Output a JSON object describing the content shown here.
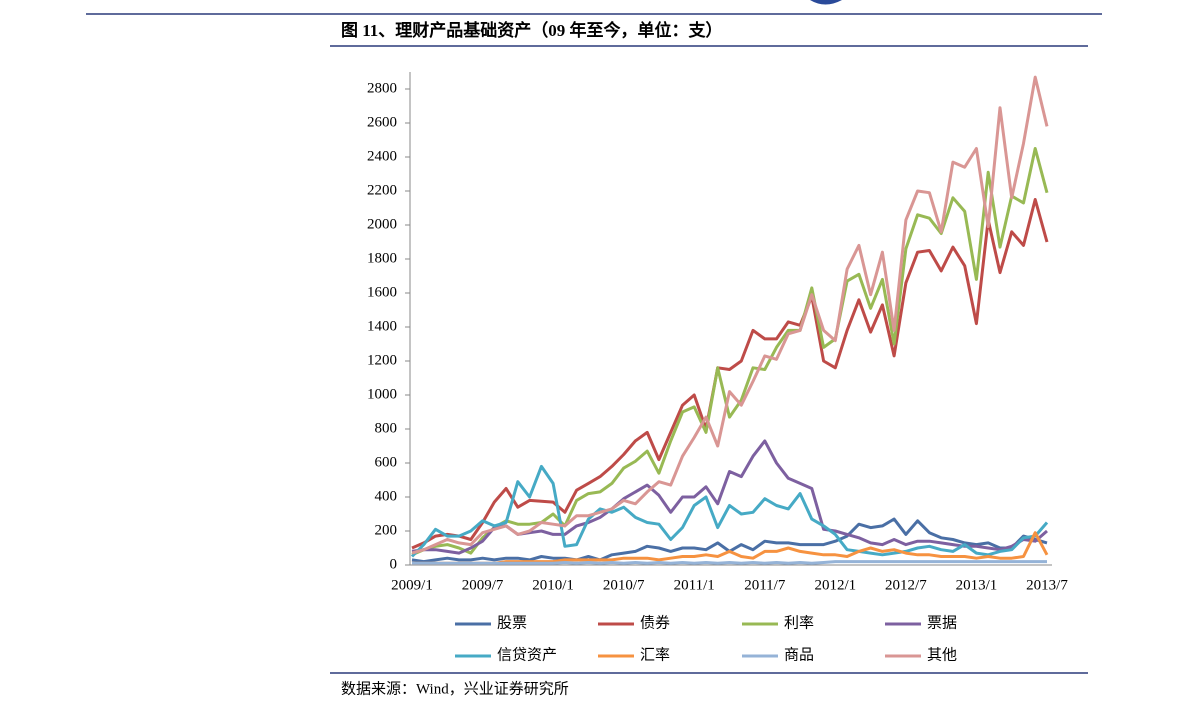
{
  "chart_data": {
    "type": "line",
    "title": "图 11、理财产品基础资产（09 年至今，单位：支）",
    "source": "数据来源：Wind，兴业证券研究所",
    "categories": [
      "2009/1",
      null,
      null,
      null,
      null,
      null,
      "2009/7",
      null,
      null,
      null,
      null,
      null,
      "2010/1",
      null,
      null,
      null,
      null,
      null,
      "2010/7",
      null,
      null,
      null,
      null,
      null,
      "2011/1",
      null,
      null,
      null,
      null,
      null,
      "2011/7",
      null,
      null,
      null,
      null,
      null,
      "2012/1",
      null,
      null,
      null,
      null,
      null,
      "2012/7",
      null,
      null,
      null,
      null,
      null,
      "2013/1",
      null,
      null,
      null,
      null,
      null,
      "2013/7"
    ],
    "ylim": [
      0,
      2900
    ],
    "yticks": [
      0,
      200,
      400,
      600,
      800,
      1000,
      1200,
      1400,
      1600,
      1800,
      2000,
      2200,
      2400,
      2600,
      2800
    ],
    "legend": "bottom",
    "series": [
      {
        "name": "股票",
        "color": "#4a6fa5",
        "values": [
          30,
          20,
          30,
          40,
          30,
          30,
          40,
          30,
          40,
          40,
          30,
          50,
          40,
          40,
          30,
          50,
          30,
          60,
          70,
          80,
          110,
          100,
          80,
          100,
          100,
          90,
          130,
          80,
          120,
          90,
          140,
          130,
          130,
          120,
          120,
          120,
          140,
          170,
          240,
          220,
          230,
          270,
          180,
          260,
          190,
          160,
          150,
          130,
          120,
          130,
          100,
          100,
          170,
          150,
          130
        ]
      },
      {
        "name": "债券",
        "color": "#be4b48",
        "values": [
          100,
          130,
          170,
          180,
          170,
          150,
          250,
          370,
          450,
          340,
          380,
          375,
          370,
          310,
          440,
          480,
          520,
          580,
          650,
          730,
          780,
          620,
          780,
          940,
          1000,
          800,
          1160,
          1150,
          1200,
          1380,
          1330,
          1330,
          1430,
          1410,
          1580,
          1200,
          1160,
          1380,
          1560,
          1370,
          1530,
          1230,
          1660,
          1840,
          1850,
          1730,
          1870,
          1760,
          1420,
          2030,
          1720,
          1960,
          1880,
          2150,
          1900
        ]
      },
      {
        "name": "利率",
        "color": "#98b954",
        "values": [
          60,
          90,
          110,
          120,
          100,
          70,
          160,
          220,
          260,
          240,
          240,
          250,
          300,
          230,
          380,
          420,
          430,
          480,
          570,
          610,
          670,
          540,
          730,
          900,
          930,
          780,
          1160,
          870,
          970,
          1160,
          1150,
          1280,
          1380,
          1380,
          1630,
          1280,
          1330,
          1670,
          1710,
          1510,
          1680,
          1300,
          1860,
          2060,
          2040,
          1950,
          2160,
          2080,
          1680,
          2310,
          1870,
          2170,
          2130,
          2450,
          2190
        ]
      },
      {
        "name": "票据",
        "color": "#7d60a0",
        "values": [
          80,
          90,
          90,
          80,
          70,
          100,
          140,
          220,
          230,
          180,
          190,
          200,
          180,
          180,
          230,
          250,
          280,
          330,
          390,
          430,
          470,
          410,
          310,
          400,
          400,
          460,
          360,
          550,
          520,
          640,
          730,
          600,
          510,
          480,
          450,
          210,
          200,
          180,
          160,
          130,
          120,
          150,
          120,
          140,
          140,
          130,
          120,
          110,
          110,
          100,
          90,
          110,
          150,
          140,
          200
        ]
      },
      {
        "name": "信贷资产",
        "color": "#46aac5",
        "values": [
          50,
          120,
          210,
          170,
          170,
          200,
          260,
          230,
          250,
          490,
          400,
          580,
          480,
          110,
          120,
          270,
          330,
          310,
          340,
          280,
          250,
          240,
          150,
          220,
          350,
          400,
          220,
          350,
          300,
          310,
          390,
          350,
          330,
          420,
          270,
          230,
          180,
          90,
          80,
          70,
          60,
          70,
          80,
          100,
          110,
          90,
          80,
          120,
          70,
          60,
          80,
          90,
          160,
          170,
          250
        ]
      },
      {
        "name": "汇率",
        "color": "#f69240",
        "values": [
          10,
          10,
          10,
          10,
          10,
          10,
          10,
          10,
          20,
          20,
          20,
          20,
          20,
          30,
          30,
          30,
          30,
          30,
          40,
          40,
          40,
          30,
          40,
          50,
          50,
          60,
          50,
          80,
          50,
          40,
          80,
          80,
          100,
          80,
          70,
          60,
          60,
          50,
          80,
          100,
          80,
          90,
          70,
          60,
          60,
          50,
          50,
          50,
          40,
          50,
          40,
          40,
          50,
          190,
          60
        ]
      },
      {
        "name": "商品",
        "color": "#95b3d7",
        "values": [
          10,
          10,
          10,
          10,
          10,
          10,
          10,
          10,
          10,
          10,
          10,
          10,
          10,
          15,
          10,
          15,
          10,
          15,
          10,
          15,
          10,
          15,
          10,
          15,
          10,
          15,
          10,
          15,
          10,
          15,
          10,
          15,
          10,
          15,
          10,
          15,
          20,
          20,
          20,
          20,
          20,
          20,
          20,
          20,
          20,
          20,
          20,
          20,
          20,
          20,
          20,
          20,
          20,
          20,
          20
        ]
      },
      {
        "name": "其他",
        "color": "#d99694",
        "values": [
          70,
          90,
          120,
          150,
          130,
          120,
          190,
          210,
          230,
          180,
          200,
          250,
          240,
          230,
          290,
          290,
          310,
          330,
          380,
          360,
          430,
          490,
          470,
          640,
          750,
          870,
          700,
          1020,
          940,
          1080,
          1230,
          1210,
          1360,
          1380,
          1590,
          1380,
          1320,
          1740,
          1880,
          1590,
          1840,
          1380,
          2030,
          2200,
          2190,
          1960,
          2370,
          2340,
          2450,
          1990,
          2690,
          2160,
          2480,
          2870,
          2580
        ]
      }
    ]
  }
}
